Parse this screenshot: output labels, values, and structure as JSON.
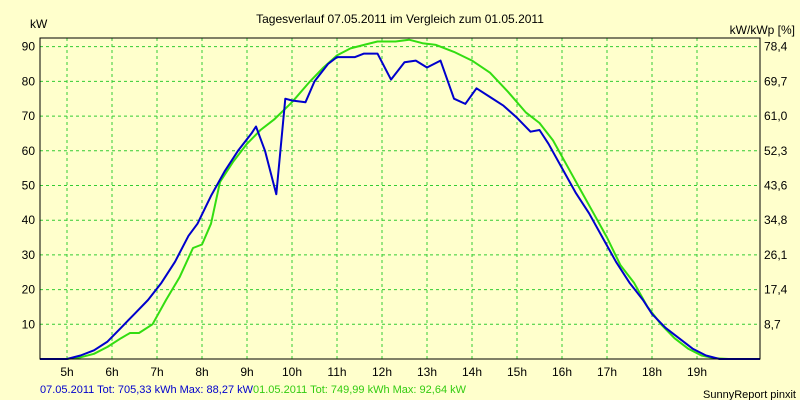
{
  "chart_data": {
    "type": "line",
    "title": "Tagesverlauf 07.05.2011 im Vergleich zum 01.05.2011",
    "ylabel_left": "kW",
    "ylabel_right": "kW/kWp [%]",
    "ylim": [
      0,
      92.5
    ],
    "y_ticks": [
      10,
      20,
      30,
      40,
      50,
      60,
      70,
      80,
      90
    ],
    "y_right_ticks": [
      "8,7",
      "17,4",
      "26,1",
      "34,8",
      "43,6",
      "52,3",
      "61,0",
      "69,7",
      "78,4"
    ],
    "xlim": [
      4.4,
      20.4
    ],
    "x_ticks": [
      5,
      6,
      7,
      8,
      9,
      10,
      11,
      12,
      13,
      14,
      15,
      16,
      17,
      18,
      19
    ],
    "x_tick_labels": [
      "5h",
      "6h",
      "7h",
      "8h",
      "9h",
      "10h",
      "11h",
      "12h",
      "13h",
      "14h",
      "15h",
      "16h",
      "17h",
      "18h",
      "19h"
    ],
    "grid": true,
    "colors": {
      "background": "#ffffcc",
      "plot_background": "#ffffcc",
      "grid": "#33cc33",
      "blue_series": "#0000cc",
      "green_series": "#33dd11"
    },
    "series": [
      {
        "id": "blue",
        "color": "#0000cc",
        "points": [
          [
            4.4,
            0
          ],
          [
            5.0,
            0
          ],
          [
            5.3,
            1
          ],
          [
            5.6,
            2.5
          ],
          [
            5.9,
            5
          ],
          [
            6.2,
            9
          ],
          [
            6.5,
            13
          ],
          [
            6.8,
            17
          ],
          [
            7.1,
            22
          ],
          [
            7.4,
            28
          ],
          [
            7.7,
            35.5
          ],
          [
            7.9,
            39
          ],
          [
            8.2,
            47
          ],
          [
            8.5,
            54
          ],
          [
            8.8,
            60
          ],
          [
            9.1,
            65
          ],
          [
            9.2,
            67
          ],
          [
            9.4,
            60
          ],
          [
            9.6,
            50
          ],
          [
            9.65,
            47.5
          ],
          [
            9.85,
            75
          ],
          [
            10.0,
            74.5
          ],
          [
            10.3,
            74
          ],
          [
            10.5,
            80
          ],
          [
            10.8,
            85
          ],
          [
            11.0,
            87
          ],
          [
            11.4,
            87
          ],
          [
            11.6,
            88
          ],
          [
            11.9,
            88
          ],
          [
            12.2,
            80.5
          ],
          [
            12.5,
            85.5
          ],
          [
            12.75,
            86
          ],
          [
            13.0,
            84
          ],
          [
            13.3,
            86
          ],
          [
            13.6,
            75
          ],
          [
            13.85,
            73.5
          ],
          [
            14.1,
            78
          ],
          [
            14.4,
            75.5
          ],
          [
            14.7,
            73
          ],
          [
            15.0,
            69.5
          ],
          [
            15.3,
            65.5
          ],
          [
            15.5,
            66
          ],
          [
            15.7,
            62
          ],
          [
            16.0,
            55
          ],
          [
            16.3,
            48
          ],
          [
            16.6,
            42
          ],
          [
            16.9,
            35
          ],
          [
            17.2,
            28
          ],
          [
            17.5,
            22
          ],
          [
            17.8,
            17
          ],
          [
            18.0,
            13
          ],
          [
            18.3,
            9
          ],
          [
            18.6,
            6
          ],
          [
            18.9,
            3
          ],
          [
            19.2,
            1
          ],
          [
            19.5,
            0
          ],
          [
            20.4,
            0
          ]
        ]
      },
      {
        "id": "green",
        "color": "#33dd11",
        "points": [
          [
            4.4,
            0
          ],
          [
            5.0,
            0
          ],
          [
            5.3,
            0.5
          ],
          [
            5.6,
            1.5
          ],
          [
            5.9,
            3.5
          ],
          [
            6.2,
            6
          ],
          [
            6.4,
            7.5
          ],
          [
            6.6,
            7.5
          ],
          [
            6.9,
            10
          ],
          [
            7.2,
            17
          ],
          [
            7.5,
            23.5
          ],
          [
            7.8,
            32
          ],
          [
            8.0,
            33
          ],
          [
            8.2,
            39
          ],
          [
            8.4,
            51
          ],
          [
            8.7,
            57
          ],
          [
            9.0,
            62
          ],
          [
            9.3,
            66
          ],
          [
            9.6,
            69
          ],
          [
            10.0,
            74
          ],
          [
            10.4,
            80
          ],
          [
            10.7,
            84
          ],
          [
            11.0,
            87.5
          ],
          [
            11.3,
            89.5
          ],
          [
            11.6,
            90.5
          ],
          [
            11.9,
            91.5
          ],
          [
            12.3,
            91.5
          ],
          [
            12.6,
            92
          ],
          [
            12.9,
            91
          ],
          [
            13.2,
            90.5
          ],
          [
            13.6,
            88.5
          ],
          [
            14.0,
            86
          ],
          [
            14.4,
            82.5
          ],
          [
            14.8,
            77
          ],
          [
            15.2,
            71
          ],
          [
            15.5,
            68
          ],
          [
            15.8,
            63
          ],
          [
            16.1,
            56
          ],
          [
            16.4,
            49
          ],
          [
            16.7,
            42
          ],
          [
            17.0,
            35
          ],
          [
            17.3,
            27
          ],
          [
            17.6,
            22
          ],
          [
            17.9,
            15
          ],
          [
            18.2,
            10
          ],
          [
            18.5,
            6
          ],
          [
            18.8,
            3
          ],
          [
            19.1,
            1
          ],
          [
            19.4,
            0.2
          ],
          [
            19.7,
            0
          ],
          [
            20.4,
            0
          ]
        ]
      }
    ]
  },
  "footer": {
    "blue_summary": "07.05.2011 Tot: 705,33 kWh Max: 88,27 kW",
    "green_summary": "01.05.2011 Tot: 749,99 kWh Max: 92,64 kW",
    "brand": "SunnyReport pinxit"
  }
}
